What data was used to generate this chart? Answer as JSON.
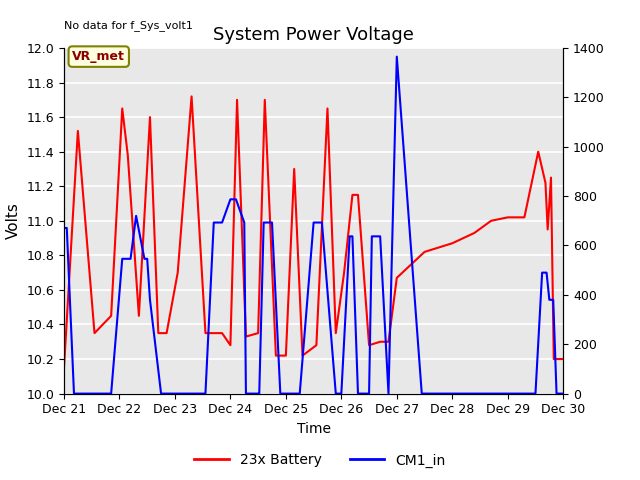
{
  "title": "System Power Voltage",
  "top_left_note": "No data for f_Sys_volt1",
  "ylabel_left": "Volts",
  "xlabel": "Time",
  "ylim_left": [
    10.0,
    12.0
  ],
  "ylim_right": [
    0,
    1400
  ],
  "yticks_left": [
    10.0,
    10.2,
    10.4,
    10.6,
    10.8,
    11.0,
    11.2,
    11.4,
    11.6,
    11.8,
    12.0
  ],
  "yticks_right": [
    0,
    200,
    400,
    600,
    800,
    1000,
    1200,
    1400
  ],
  "background_color": "#e8e8e8",
  "vr_met_label": "VR_met",
  "legend_entries": [
    "23x Battery",
    "CM1_in"
  ],
  "x_dates": [
    21,
    22,
    23,
    24,
    25,
    26,
    27,
    28,
    29,
    30
  ],
  "x_labels": [
    "Dec 21",
    "Dec 22",
    "Dec 23",
    "Dec 24",
    "Dec 25",
    "Dec 26",
    "Dec 27",
    "Dec 28",
    "Dec 29",
    "Dec 30"
  ],
  "red_x": [
    21.0,
    21.25,
    21.55,
    21.85,
    22.05,
    22.15,
    22.35,
    22.55,
    22.7,
    22.85,
    23.05,
    23.3,
    23.55,
    23.7,
    23.85,
    24.0,
    24.12,
    24.28,
    24.5,
    24.62,
    24.82,
    25.0,
    25.15,
    25.3,
    25.55,
    25.75,
    25.9,
    26.05,
    26.2,
    26.3,
    26.5,
    26.7,
    26.85,
    27.0,
    27.5,
    28.0,
    28.4,
    28.7,
    29.0,
    29.3,
    29.55,
    29.68,
    29.72,
    29.78,
    29.83,
    29.88,
    30.0
  ],
  "red_y": [
    10.15,
    11.52,
    10.35,
    10.45,
    11.65,
    11.38,
    10.45,
    11.6,
    10.35,
    10.35,
    10.7,
    11.72,
    10.35,
    10.35,
    10.35,
    10.28,
    11.7,
    10.33,
    10.35,
    11.7,
    10.22,
    10.22,
    11.3,
    10.22,
    10.28,
    11.65,
    10.35,
    10.7,
    11.15,
    11.15,
    10.28,
    10.3,
    10.3,
    10.67,
    10.82,
    10.87,
    10.93,
    11.0,
    11.02,
    11.02,
    11.4,
    11.22,
    10.95,
    11.25,
    10.2,
    10.2,
    10.2
  ],
  "blue_x": [
    21.0,
    21.05,
    21.18,
    21.55,
    21.85,
    22.05,
    22.2,
    22.3,
    22.45,
    22.5,
    22.55,
    22.75,
    22.9,
    23.0,
    23.3,
    23.55,
    23.7,
    23.85,
    24.0,
    24.1,
    24.25,
    24.28,
    24.5,
    24.52,
    24.6,
    24.75,
    24.9,
    25.0,
    25.25,
    25.5,
    25.55,
    25.65,
    25.9,
    26.0,
    26.15,
    26.2,
    26.3,
    26.5,
    26.55,
    26.6,
    26.7,
    26.85,
    27.0,
    27.45,
    28.0,
    28.5,
    29.0,
    29.5,
    29.62,
    29.65,
    29.7,
    29.75,
    29.82,
    29.88,
    30.0
  ],
  "blue_y": [
    671,
    671,
    0,
    0,
    0,
    546,
    546,
    720,
    546,
    546,
    380,
    0,
    0,
    0,
    0,
    0,
    693,
    693,
    787,
    787,
    693,
    0,
    0,
    0,
    693,
    693,
    0,
    0,
    0,
    693,
    693,
    693,
    0,
    0,
    637,
    637,
    0,
    0,
    637,
    637,
    637,
    0,
    1365,
    0,
    0,
    0,
    0,
    0,
    490,
    490,
    490,
    380,
    380,
    0,
    0
  ]
}
